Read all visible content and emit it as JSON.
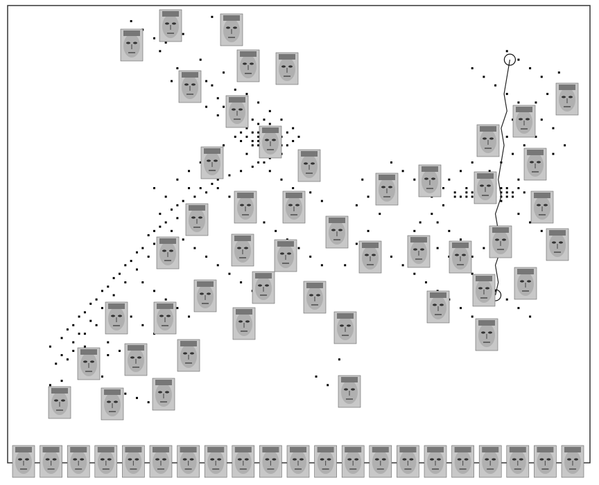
{
  "figure": {
    "description_visible": "",
    "background": "#ffffff",
    "frame_color": "#333333",
    "dot_color": "#000000",
    "trajectory_color": "#222222"
  },
  "chart_data": {
    "type": "scatter",
    "title": "",
    "xlabel": "",
    "ylabel": "",
    "grid": false,
    "legend": "none",
    "xlim": [
      0,
      100
    ],
    "ylim": [
      0,
      100
    ],
    "marker": "small square",
    "series": [
      {
        "points_cluster_left": [
          [
            28,
            96
          ],
          [
            30,
            94
          ],
          [
            27,
            92
          ],
          [
            26,
            90
          ],
          [
            33,
            88
          ],
          [
            29,
            86
          ],
          [
            31,
            84
          ],
          [
            35,
            82
          ],
          [
            32,
            80
          ],
          [
            36,
            79
          ],
          [
            37,
            77
          ],
          [
            38,
            76
          ],
          [
            40,
            75
          ],
          [
            42,
            74
          ],
          [
            39,
            73
          ],
          [
            41,
            72
          ],
          [
            43,
            71
          ],
          [
            44,
            70
          ],
          [
            45,
            69
          ],
          [
            43,
            68
          ],
          [
            46,
            67
          ],
          [
            47,
            66
          ],
          [
            45,
            65
          ],
          [
            44,
            64
          ],
          [
            42,
            63
          ],
          [
            40,
            62
          ],
          [
            38,
            61
          ],
          [
            36,
            60
          ],
          [
            35,
            59
          ],
          [
            33,
            58
          ],
          [
            34,
            57
          ],
          [
            32,
            56
          ],
          [
            30,
            55
          ],
          [
            29,
            54
          ],
          [
            28,
            53
          ],
          [
            31,
            52
          ],
          [
            29,
            51
          ],
          [
            27,
            50
          ],
          [
            26,
            49
          ],
          [
            25,
            48
          ],
          [
            24,
            47
          ],
          [
            27,
            46
          ],
          [
            25,
            45
          ],
          [
            23,
            44
          ],
          [
            22,
            43
          ],
          [
            24,
            42
          ],
          [
            21,
            41
          ],
          [
            20,
            40
          ],
          [
            22,
            39
          ],
          [
            19,
            38
          ],
          [
            18,
            37
          ],
          [
            20,
            36
          ],
          [
            17,
            35
          ],
          [
            16,
            34
          ],
          [
            18,
            33
          ],
          [
            15,
            32
          ],
          [
            14,
            31
          ],
          [
            16,
            30
          ],
          [
            13,
            29
          ],
          [
            12,
            28
          ],
          [
            14,
            27
          ],
          [
            11,
            26
          ],
          [
            10,
            25
          ],
          [
            12,
            24
          ],
          [
            9,
            23
          ],
          [
            11,
            22
          ],
          [
            13,
            21
          ],
          [
            15,
            20
          ],
          [
            17,
            19
          ],
          [
            10,
            18
          ],
          [
            8,
            17
          ],
          [
            12,
            16
          ],
          [
            14,
            15
          ],
          [
            16,
            14
          ],
          [
            9,
            13
          ],
          [
            7,
            12
          ],
          [
            18,
            11
          ],
          [
            20,
            10
          ],
          [
            22,
            9
          ],
          [
            24,
            8
          ],
          [
            37,
            85
          ],
          [
            34,
            83
          ],
          [
            39,
            81
          ],
          [
            41,
            80
          ],
          [
            43,
            78
          ],
          [
            45,
            76
          ],
          [
            47,
            74
          ],
          [
            49,
            72
          ],
          [
            50,
            70
          ],
          [
            48,
            68
          ],
          [
            46,
            66
          ],
          [
            44,
            67
          ],
          [
            42,
            69
          ],
          [
            40,
            71
          ],
          [
            38,
            73
          ],
          [
            36,
            75
          ],
          [
            34,
            77
          ],
          [
            32,
            79
          ],
          [
            30,
            81
          ],
          [
            28,
            83
          ],
          [
            31,
            62
          ],
          [
            33,
            64
          ],
          [
            35,
            66
          ],
          [
            37,
            68
          ],
          [
            39,
            70
          ],
          [
            41,
            66
          ],
          [
            43,
            64
          ],
          [
            45,
            62
          ],
          [
            47,
            60
          ],
          [
            49,
            58
          ],
          [
            36,
            58
          ],
          [
            38,
            56
          ],
          [
            40,
            54
          ],
          [
            42,
            52
          ],
          [
            44,
            50
          ],
          [
            46,
            48
          ],
          [
            48,
            46
          ],
          [
            50,
            44
          ],
          [
            52,
            42
          ],
          [
            54,
            40
          ],
          [
            25,
            58
          ],
          [
            27,
            56
          ],
          [
            29,
            60
          ],
          [
            31,
            58
          ],
          [
            26,
            52
          ],
          [
            28,
            48
          ],
          [
            30,
            46
          ],
          [
            32,
            44
          ],
          [
            34,
            42
          ],
          [
            36,
            40
          ],
          [
            38,
            38
          ],
          [
            40,
            36
          ],
          [
            42,
            34
          ],
          [
            23,
            36
          ],
          [
            25,
            34
          ],
          [
            27,
            32
          ],
          [
            29,
            30
          ],
          [
            31,
            28
          ],
          [
            19,
            30
          ],
          [
            21,
            28
          ],
          [
            23,
            26
          ],
          [
            25,
            24
          ],
          [
            17,
            22
          ],
          [
            19,
            20
          ],
          [
            21,
            18
          ],
          [
            13,
            24
          ],
          [
            15,
            26
          ],
          [
            11,
            20
          ],
          [
            9,
            19
          ],
          [
            7,
            21
          ],
          [
            43,
            73
          ],
          [
            44,
            72
          ],
          [
            45,
            71
          ],
          [
            46,
            70
          ],
          [
            44,
            69
          ],
          [
            45,
            68
          ],
          [
            43,
            70
          ],
          [
            42,
            71
          ],
          [
            46,
            72
          ],
          [
            47,
            70
          ],
          [
            45,
            73
          ],
          [
            44,
            74
          ],
          [
            46,
            69
          ],
          [
            47,
            68
          ],
          [
            43,
            69
          ],
          [
            42,
            68
          ],
          [
            41,
            70
          ],
          [
            40,
            69
          ],
          [
            48,
            71
          ],
          [
            49,
            69
          ],
          [
            21,
            97
          ],
          [
            23,
            95
          ],
          [
            25,
            93
          ],
          [
            35,
            98
          ],
          [
            38,
            95
          ],
          [
            40,
            93
          ],
          [
            52,
            57
          ],
          [
            54,
            55
          ],
          [
            56,
            50
          ],
          [
            55,
            12
          ],
          [
            57,
            18
          ],
          [
            53,
            14
          ],
          [
            58,
            40
          ],
          [
            60,
            45
          ],
          [
            62,
            48
          ],
          [
            64,
            52
          ],
          [
            61,
            60
          ]
        ]
      },
      {
        "points_cluster_right": [
          [
            80,
            86
          ],
          [
            82,
            84
          ],
          [
            84,
            82
          ],
          [
            86,
            80
          ],
          [
            88,
            78
          ],
          [
            90,
            76
          ],
          [
            92,
            74
          ],
          [
            94,
            72
          ],
          [
            91,
            70
          ],
          [
            89,
            68
          ],
          [
            87,
            66
          ],
          [
            85,
            64
          ],
          [
            83,
            62
          ],
          [
            81,
            60
          ],
          [
            79,
            58
          ],
          [
            77,
            56
          ],
          [
            75,
            54
          ],
          [
            73,
            52
          ],
          [
            71,
            50
          ],
          [
            70,
            48
          ],
          [
            72,
            46
          ],
          [
            74,
            44
          ],
          [
            76,
            42
          ],
          [
            78,
            40
          ],
          [
            80,
            38
          ],
          [
            82,
            36
          ],
          [
            84,
            34
          ],
          [
            86,
            32
          ],
          [
            88,
            30
          ],
          [
            90,
            28
          ],
          [
            82,
            58
          ],
          [
            83,
            57
          ],
          [
            84,
            56
          ],
          [
            85,
            57
          ],
          [
            86,
            58
          ],
          [
            84,
            55
          ],
          [
            83,
            56
          ],
          [
            82,
            55
          ],
          [
            81,
            57
          ],
          [
            80,
            56
          ],
          [
            79,
            57
          ],
          [
            78,
            56
          ],
          [
            77,
            57
          ],
          [
            85,
            55
          ],
          [
            86,
            56
          ],
          [
            87,
            57
          ],
          [
            88,
            58
          ],
          [
            89,
            57
          ],
          [
            84,
            59
          ],
          [
            83,
            60
          ],
          [
            76,
            60
          ],
          [
            75,
            58
          ],
          [
            74,
            57
          ],
          [
            73,
            56
          ],
          [
            72,
            58
          ],
          [
            78,
            62
          ],
          [
            80,
            64
          ],
          [
            82,
            66
          ],
          [
            84,
            68
          ],
          [
            86,
            70
          ],
          [
            88,
            60
          ],
          [
            90,
            62
          ],
          [
            92,
            64
          ],
          [
            94,
            66
          ],
          [
            96,
            68
          ],
          [
            88,
            52
          ],
          [
            90,
            50
          ],
          [
            92,
            48
          ],
          [
            86,
            48
          ],
          [
            84,
            46
          ],
          [
            82,
            44
          ],
          [
            80,
            42
          ],
          [
            78,
            46
          ],
          [
            76,
            48
          ],
          [
            74,
            50
          ],
          [
            70,
            60
          ],
          [
            68,
            62
          ],
          [
            66,
            64
          ],
          [
            64,
            58
          ],
          [
            62,
            56
          ],
          [
            60,
            54
          ],
          [
            68,
            40
          ],
          [
            70,
            38
          ],
          [
            72,
            36
          ],
          [
            74,
            34
          ],
          [
            76,
            32
          ],
          [
            78,
            30
          ],
          [
            80,
            28
          ],
          [
            66,
            42
          ],
          [
            64,
            44
          ],
          [
            88,
            88
          ],
          [
            90,
            86
          ],
          [
            92,
            84
          ],
          [
            86,
            90
          ],
          [
            95,
            85
          ],
          [
            97,
            82
          ],
          [
            93,
            80
          ],
          [
            91,
            78
          ],
          [
            89,
            76
          ],
          [
            87,
            74
          ],
          [
            85,
            58
          ],
          [
            84,
            58
          ],
          [
            83,
            58
          ],
          [
            82,
            57
          ],
          [
            81,
            58
          ],
          [
            80,
            57
          ],
          [
            79,
            56
          ],
          [
            86,
            57
          ],
          [
            87,
            56
          ],
          [
            85,
            56
          ]
        ]
      }
    ],
    "trajectory": {
      "start_circle": [
        86.5,
        88
      ],
      "end_circle": [
        84,
        33
      ],
      "path": [
        [
          86.5,
          88
        ],
        [
          86,
          84
        ],
        [
          85.5,
          80
        ],
        [
          86,
          76
        ],
        [
          85,
          72
        ],
        [
          85.5,
          68
        ],
        [
          85,
          64
        ],
        [
          84.5,
          60
        ],
        [
          85,
          56
        ],
        [
          84,
          52
        ],
        [
          84.5,
          48
        ],
        [
          85,
          44
        ],
        [
          84,
          40
        ],
        [
          84.5,
          36
        ],
        [
          84,
          33
        ]
      ]
    },
    "face_thumbnails_in_plot": 55,
    "face_thumbnails_bottom_row": 21
  }
}
